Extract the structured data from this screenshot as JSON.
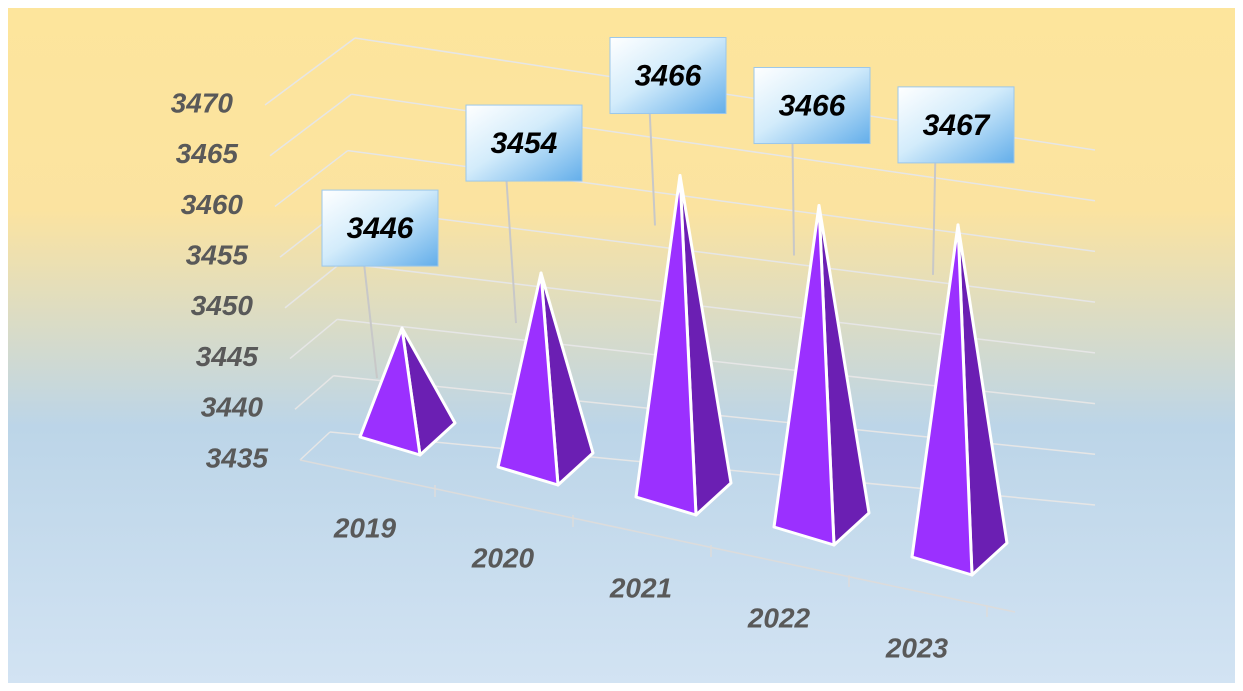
{
  "chart_data": {
    "type": "pyramid",
    "categories": [
      "2019",
      "2020",
      "2021",
      "2022",
      "2023"
    ],
    "values": [
      3446,
      3454,
      3466,
      3466,
      3467
    ],
    "color": "#9b30ff",
    "ylim": [
      3435,
      3470
    ],
    "yticks": [
      3435,
      3440,
      3445,
      3450,
      3455,
      3460,
      3465,
      3470
    ],
    "grid": true
  }
}
